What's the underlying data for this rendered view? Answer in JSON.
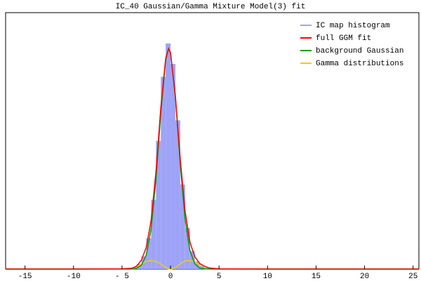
{
  "chart_data": {
    "type": "line",
    "title": "IC_40 Gaussian/Gamma Mixture Model(3) fit",
    "legend": "top-right",
    "xlim": [
      -17,
      25.6
    ],
    "ylim": [
      0,
      1
    ],
    "xticks": [
      -15,
      -10,
      {
        "value": -5,
        "label": "- 5"
      },
      0,
      5,
      10,
      15,
      20,
      25
    ],
    "histogram": {
      "name": "IC map histogram",
      "color": "#9ea3f7",
      "bins": [
        -4.5,
        -4,
        -3.5,
        -3,
        -2.5,
        -2,
        -1.5,
        -1,
        -0.5,
        0,
        0.5,
        1,
        1.5,
        2,
        2.5,
        3,
        3.5,
        4,
        4.5
      ],
      "values": [
        0.002,
        0.006,
        0.02,
        0.05,
        0.12,
        0.27,
        0.5,
        0.75,
        0.88,
        0.8,
        0.58,
        0.33,
        0.16,
        0.07,
        0.03,
        0.012,
        0.005,
        0.002
      ]
    },
    "x": [
      -17,
      -10,
      -5,
      -4,
      -3.5,
      -3,
      -2.5,
      -2,
      -1.5,
      -1,
      -0.5,
      -0.2,
      0,
      0.5,
      1,
      1.5,
      2,
      2.5,
      3,
      3.5,
      4,
      5,
      10,
      25.6
    ],
    "series": [
      {
        "name": "full GGM fit",
        "color": "#ff0000",
        "values": [
          0,
          0,
          0.001,
          0.003,
          0.011,
          0.035,
          0.085,
          0.19,
          0.38,
          0.63,
          0.822,
          0.86,
          0.843,
          0.675,
          0.43,
          0.225,
          0.105,
          0.048,
          0.022,
          0.011,
          0.004,
          0.001,
          0,
          0
        ]
      },
      {
        "name": "background Gaussian",
        "color": "#00a000",
        "values": [
          0,
          0,
          0,
          0,
          0.003,
          0.015,
          0.055,
          0.157,
          0.35,
          0.61,
          0.816,
          0.86,
          0.843,
          0.67,
          0.41,
          0.193,
          0.072,
          0.02,
          0.004,
          0.001,
          0,
          0,
          0,
          0
        ]
      },
      {
        "name": "Gamma distributions",
        "color": "#f0d000",
        "values": [
          0,
          0,
          0.001,
          0.003,
          0.008,
          0.02,
          0.03,
          0.033,
          0.03,
          0.02,
          0.006,
          0,
          0,
          0.005,
          0.02,
          0.032,
          0.033,
          0.028,
          0.018,
          0.01,
          0.004,
          0.001,
          0,
          0
        ]
      }
    ]
  }
}
